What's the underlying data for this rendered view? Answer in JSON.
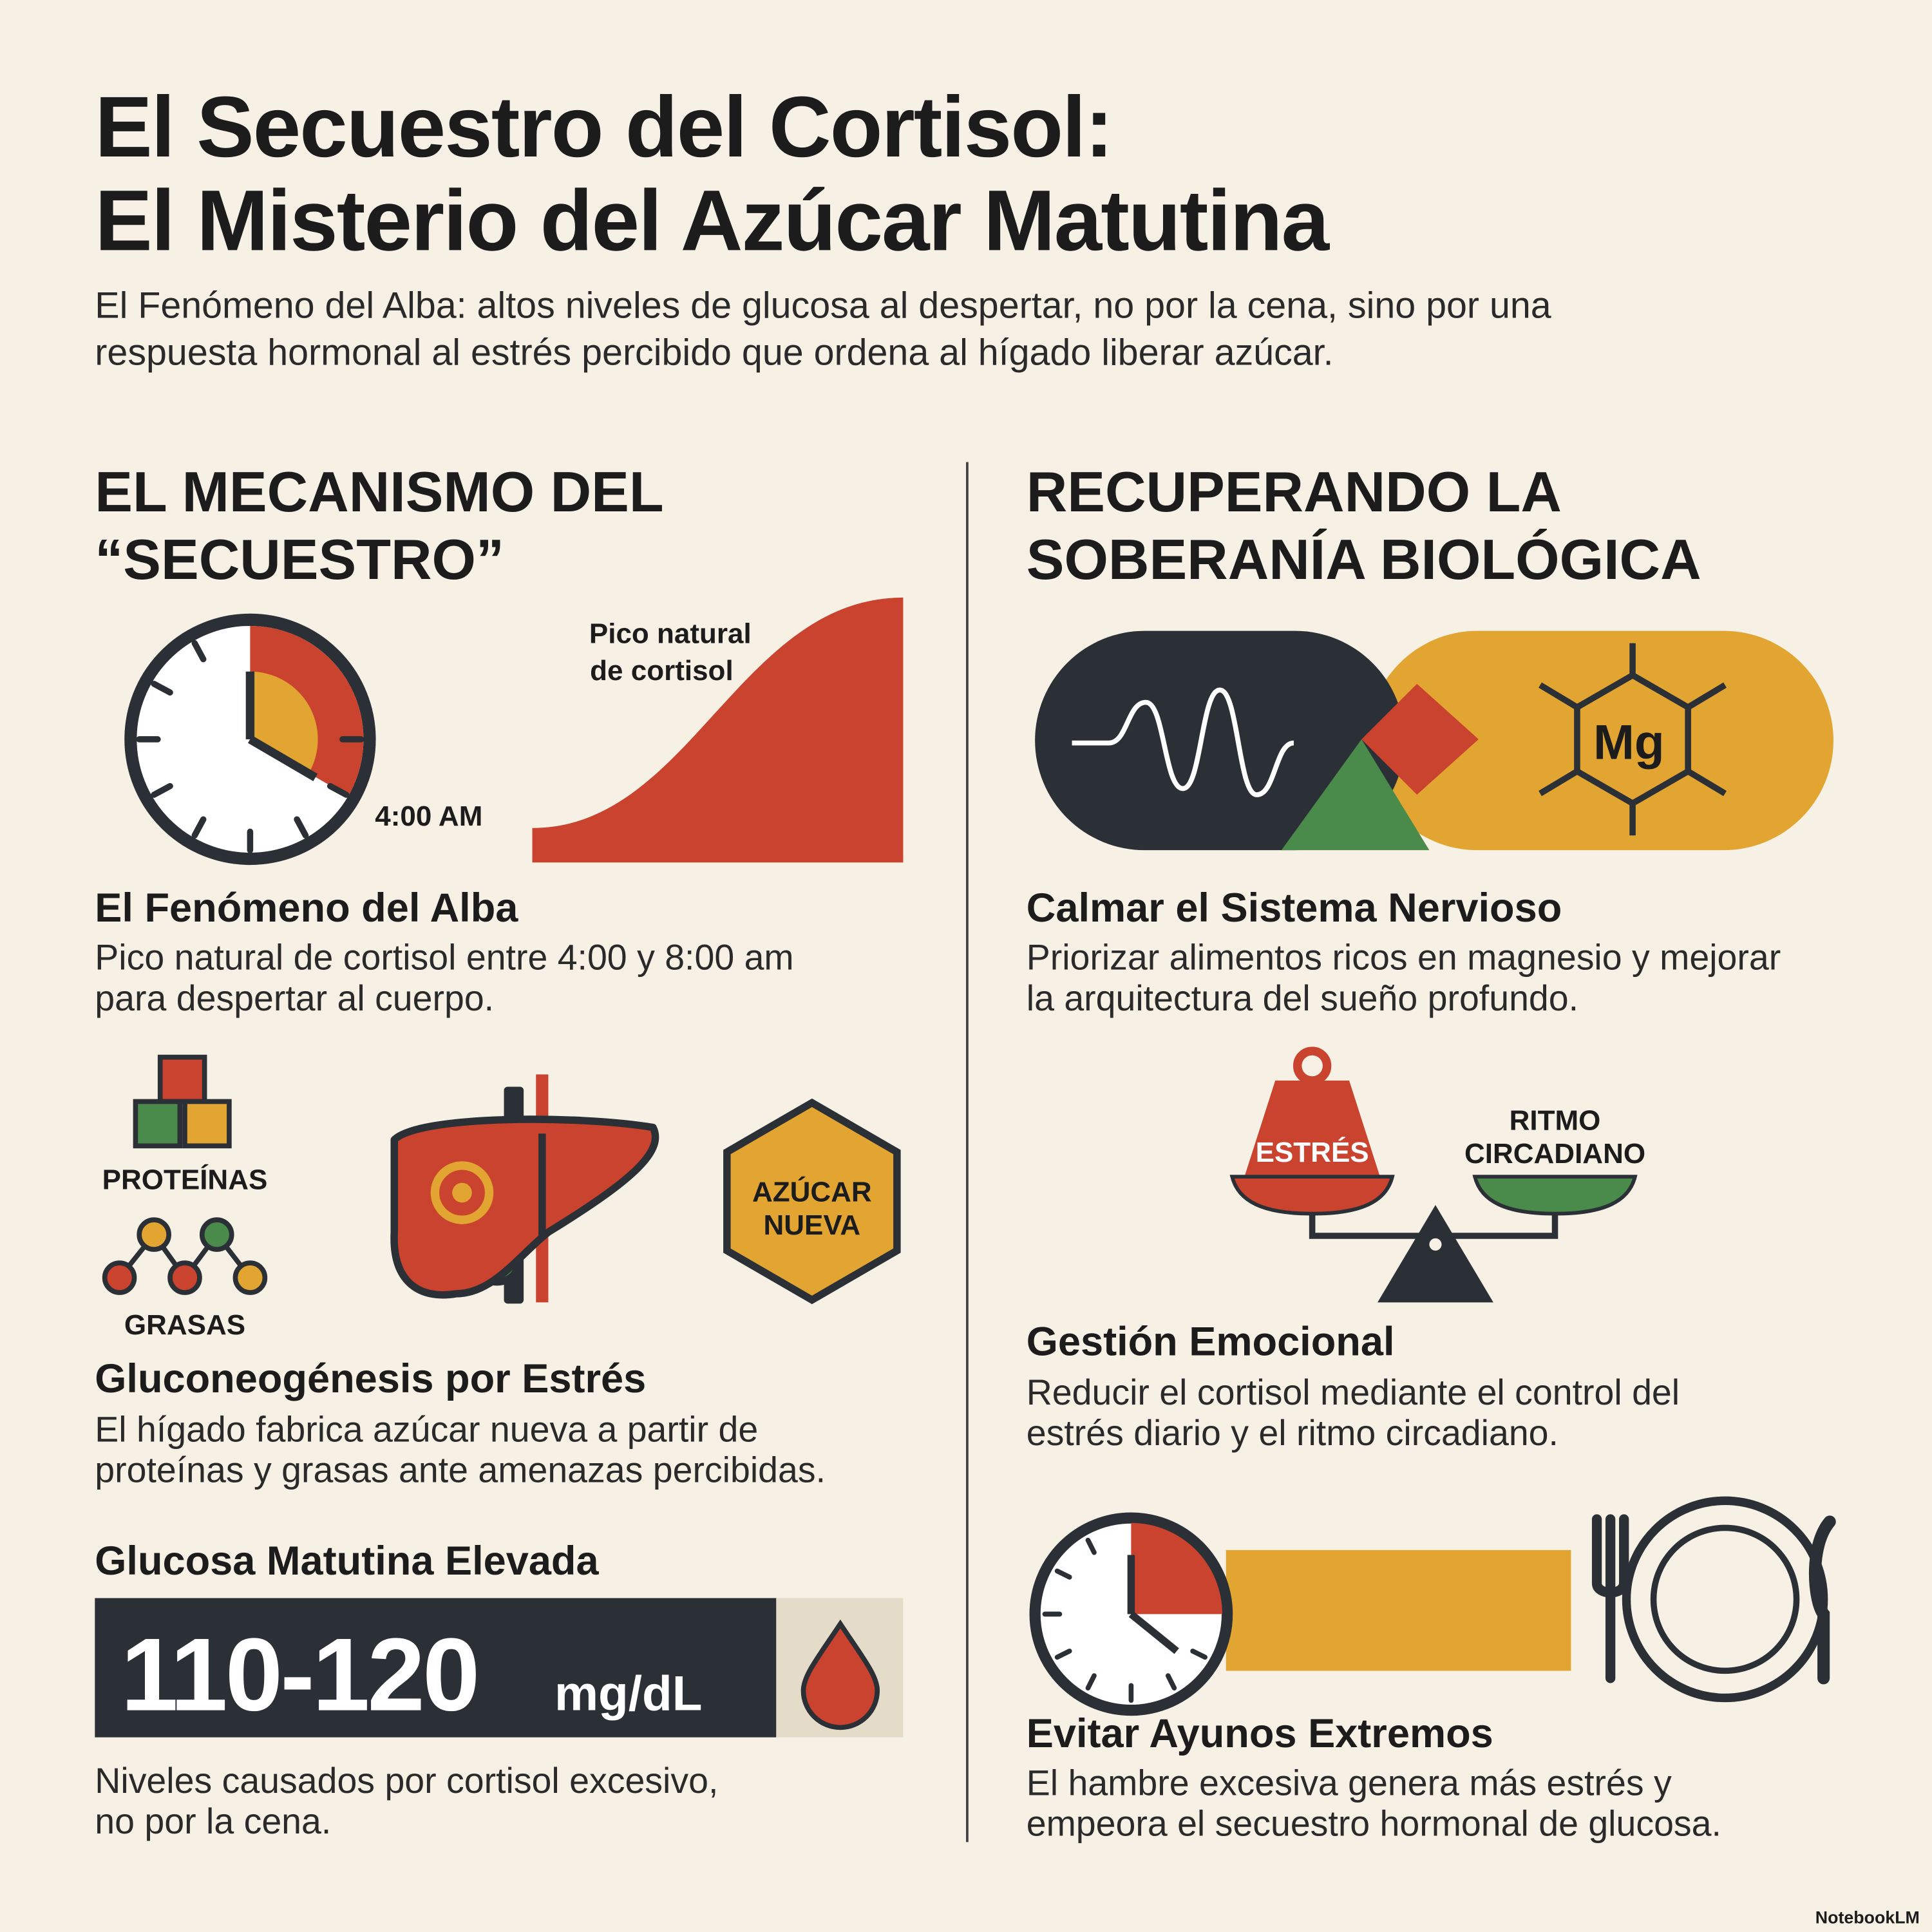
{
  "header": {
    "title": [
      "El Secuestro del Cortisol:",
      "El Misterio del Azúcar Matutina"
    ],
    "subtitle": [
      "El Fenómeno del Alba: altos niveles de glucosa al despertar, no por la cena, sino por una",
      "respuesta hormonal al estrés percibido que ordena al hígado liberar azúcar."
    ]
  },
  "left": {
    "heading": [
      "EL MECANISMO DEL",
      "“SECUESTRO”"
    ],
    "clock_label": "4:00 AM",
    "curve_label": [
      "Pico natural",
      "de cortisol"
    ],
    "sections": [
      {
        "title": "El Fenómeno del Alba",
        "text": [
          "Pico natural de cortisol entre 4:00 y 8:00 am",
          "para despertar al cuerpo."
        ]
      },
      {
        "title": "Gluconeogénesis por Estrés",
        "text": [
          "El hígado fabrica azúcar nueva a partir de",
          "proteínas y grasas ante amenazas percibidas."
        ]
      }
    ],
    "proteins": "PROTEÍNAS",
    "fats": "GRASAS",
    "new_sugar": [
      "AZÚCAR",
      "NUEVA"
    ],
    "glucose_title": "Glucosa Matutina Elevada",
    "glucose_value": "110-120",
    "glucose_unit": "mg/dL",
    "glucose_note": [
      "Niveles causados por cortisol excesivo,",
      "no por la cena."
    ]
  },
  "right": {
    "heading": [
      "RECUPERANDO LA",
      "SOBERANÍA BIOLÓGICA"
    ],
    "mg_label": "Mg",
    "scale_left": "ESTRÉS",
    "scale_right": [
      "RITMO",
      "CIRCADIANO"
    ],
    "sections": [
      {
        "title": "Calmar el Sistema Nervioso",
        "text": [
          "Priorizar alimentos ricos en magnesio y mejorar",
          "la arquitectura del sueño profundo."
        ]
      },
      {
        "title": "Gestión Emocional",
        "text": [
          "Reducir el cortisol mediante el control del",
          "estrés diario y el ritmo circadiano."
        ]
      },
      {
        "title": "Evitar Ayunos Extremos",
        "text": [
          "El hambre excesiva genera más estrés y",
          "empeora el secuestro hormonal de glucosa."
        ]
      }
    ]
  },
  "footer": "NotebookLM"
}
